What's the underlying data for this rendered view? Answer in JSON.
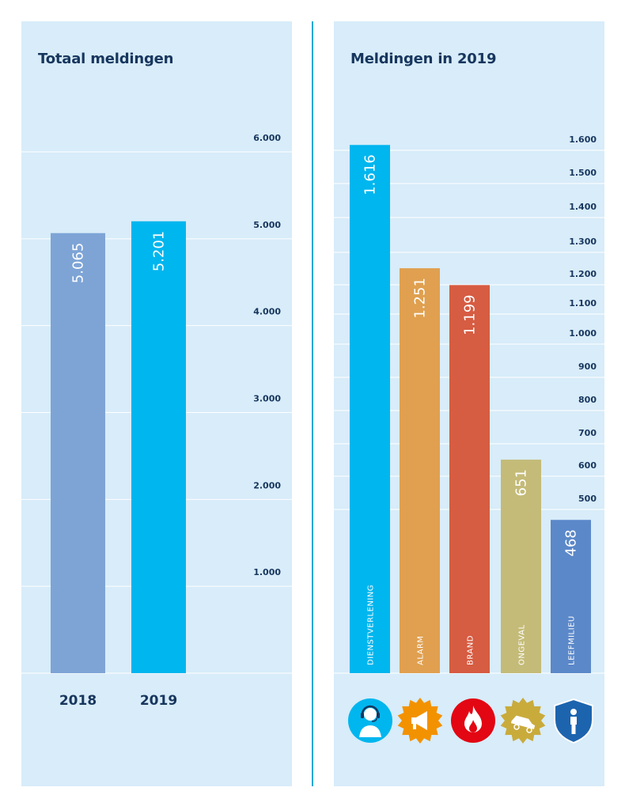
{
  "chart_data": [
    {
      "type": "bar",
      "title": "Totaal meldingen",
      "categories": [
        "2018",
        "2019"
      ],
      "values": [
        5065,
        5201
      ],
      "value_labels": [
        "5.065",
        "5.201"
      ],
      "colors": [
        "#7ea4d6",
        "#00b6ee"
      ],
      "ylim": [
        0,
        6000
      ],
      "yticks": [
        1000,
        2000,
        3000,
        4000,
        5000,
        6000
      ],
      "ytick_labels": [
        "1.000",
        "2.000",
        "3.000",
        "4.000",
        "5.000",
        "6.000"
      ],
      "grid": true,
      "axis_position": "right"
    },
    {
      "type": "bar",
      "title": "Meldingen in 2019",
      "categories": [
        "DIENSTVERLENING",
        "ALARM",
        "BRAND",
        "ONGEVAL",
        "LEEFMILIEU"
      ],
      "values": [
        1616,
        1251,
        1199,
        651,
        468
      ],
      "value_labels": [
        "1.616",
        "1.251",
        "1.199",
        "651",
        "468"
      ],
      "colors": [
        "#00b6ee",
        "#e0a050",
        "#d65c42",
        "#c4bb78",
        "#5b88c9"
      ],
      "icons": [
        "operator-icon",
        "megaphone-icon",
        "flame-icon",
        "car-crash-icon",
        "shield-person-icon"
      ],
      "icon_colors": [
        "#00b6ee",
        "#f39200",
        "#e30613",
        "#c9ab3c",
        "#1d64ae"
      ],
      "yticks": [
        500,
        600,
        700,
        800,
        900,
        1000,
        1100,
        1200,
        1300,
        1400,
        1500,
        1600
      ],
      "ytick_labels": [
        "500",
        "600",
        "700",
        "800",
        "900",
        "1.000",
        "1.100",
        "1.200",
        "1.300",
        "1.400",
        "1.500",
        "1.600"
      ],
      "grid": true,
      "axis_position": "right"
    }
  ]
}
